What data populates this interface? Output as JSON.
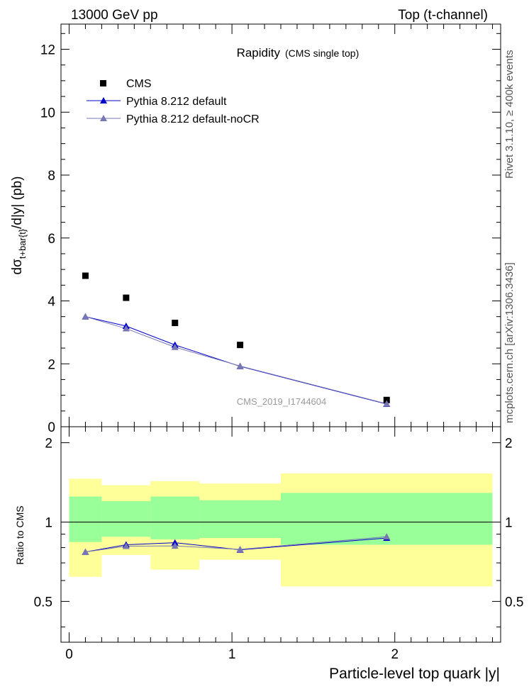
{
  "header": {
    "left": "13000 GeV pp",
    "right": "Top (t-channel)"
  },
  "side_labels": {
    "rivet": "Rivet 3.1.10, ≥ 400k events",
    "mcplots": "mcplots.cern.ch [arXiv:1306.3436]"
  },
  "chart_data": [
    {
      "type": "scatter",
      "panel": "main",
      "title": "Rapidity",
      "subtitle": "(CMS single top)",
      "watermark": "CMS_2019_I1744604",
      "ylabel_parts": [
        "dσ",
        "t+bar{t}",
        "/d|y|  (pb)"
      ],
      "xlim": [
        -0.05,
        2.65
      ],
      "ylim": [
        0,
        12.8
      ],
      "yticks": [
        0,
        2,
        4,
        6,
        8,
        10,
        12
      ],
      "yticklabels": [
        "0",
        "2",
        "4",
        "6",
        "8",
        "10",
        "12"
      ],
      "legend_position": "top-left",
      "series": [
        {
          "name": "CMS",
          "color": "#000000",
          "marker": "square",
          "x": [
            0.1,
            0.35,
            0.65,
            1.05,
            1.95
          ],
          "y": [
            4.8,
            4.1,
            3.3,
            2.6,
            0.85
          ],
          "xlow": [
            0.0,
            0.2,
            0.5,
            0.8,
            1.3
          ],
          "xhigh": [
            0.2,
            0.5,
            0.8,
            1.3,
            2.6
          ]
        },
        {
          "name": "Pythia 8.212 default",
          "color": "#0000cc",
          "marker": "triangle",
          "x": [
            0.1,
            0.35,
            0.65,
            1.05,
            1.95
          ],
          "y": [
            3.5,
            3.2,
            2.6,
            1.92,
            0.72
          ]
        },
        {
          "name": "Pythia 8.212 default-noCR",
          "color": "#7777b4",
          "marker": "triangle",
          "x": [
            0.1,
            0.35,
            0.65,
            1.05,
            1.95
          ],
          "y": [
            3.5,
            3.12,
            2.53,
            1.93,
            0.73
          ]
        }
      ]
    },
    {
      "type": "scatter",
      "panel": "ratio",
      "ylabel": "Ratio to CMS",
      "xlabel": "Particle-level top quark |y|",
      "xlim": [
        -0.05,
        2.65
      ],
      "ylim": [
        0.35,
        2.3
      ],
      "yticks": [
        0.5,
        1,
        2
      ],
      "yticklabels": [
        "0.5",
        "1",
        "2"
      ],
      "xticks": [
        0,
        1,
        2
      ],
      "xticklabels": [
        "0",
        "1",
        "2"
      ],
      "bands": {
        "xlow": [
          0.0,
          0.2,
          0.5,
          0.8,
          1.3
        ],
        "xhigh": [
          0.2,
          0.5,
          0.8,
          1.3,
          2.6
        ],
        "stat_low": [
          0.84,
          0.88,
          0.86,
          0.87,
          0.82
        ],
        "stat_high": [
          1.25,
          1.2,
          1.25,
          1.21,
          1.29
        ],
        "total_low": [
          0.62,
          0.75,
          0.66,
          0.72,
          0.57
        ],
        "total_high": [
          1.46,
          1.38,
          1.43,
          1.4,
          1.53
        ],
        "stat_color": "#99ff99",
        "total_color": "#ffff99"
      },
      "series": [
        {
          "name": "Pythia 8.212 default",
          "color": "#0000cc",
          "x": [
            0.1,
            0.35,
            0.65,
            1.05,
            1.95
          ],
          "y": [
            0.77,
            0.82,
            0.835,
            0.785,
            0.87
          ]
        },
        {
          "name": "Pythia 8.212 default-noCR",
          "color": "#7777b4",
          "x": [
            0.1,
            0.35,
            0.65,
            1.05,
            1.95
          ],
          "y": [
            0.77,
            0.81,
            0.812,
            0.788,
            0.88
          ]
        }
      ]
    }
  ]
}
